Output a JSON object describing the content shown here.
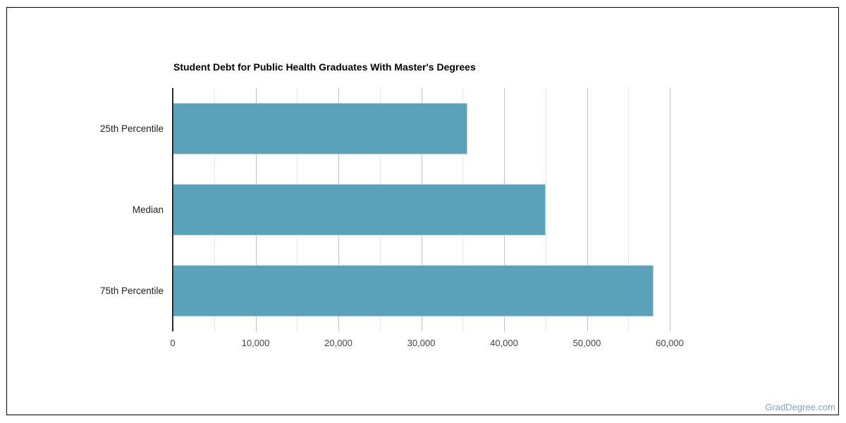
{
  "page": {
    "background": "#ffffff",
    "frame_border_color": "#000000"
  },
  "watermark": {
    "text": "GradDegree.com",
    "color": "#73a9c7"
  },
  "chart_data": {
    "type": "bar",
    "orientation": "horizontal",
    "title": "Student Debt for Public Health Graduates With Master's Degrees",
    "categories": [
      "25th Percentile",
      "Median",
      "75th Percentile"
    ],
    "values": [
      35600,
      45000,
      58000
    ],
    "xlabel": "",
    "ylabel": "",
    "xlim": [
      0,
      60000
    ],
    "x_major_ticks": [
      0,
      10000,
      20000,
      30000,
      40000,
      50000,
      60000
    ],
    "x_tick_labels": [
      "0",
      "10,000",
      "20,000",
      "30,000",
      "40,000",
      "50,000",
      "60,000"
    ],
    "x_minor_tick_step": 5000,
    "grid": true,
    "legend": "none",
    "colors": {
      "bar_fill": "#5aa1ba",
      "bar_border": "#b5d6e0",
      "axis_line": "#2b2b2b",
      "major_gridline": "#c2c2c2",
      "minor_gridline": "#e7e7e7",
      "title_text": "#000000",
      "tick_text": "#444444",
      "category_text": "#222222"
    }
  }
}
